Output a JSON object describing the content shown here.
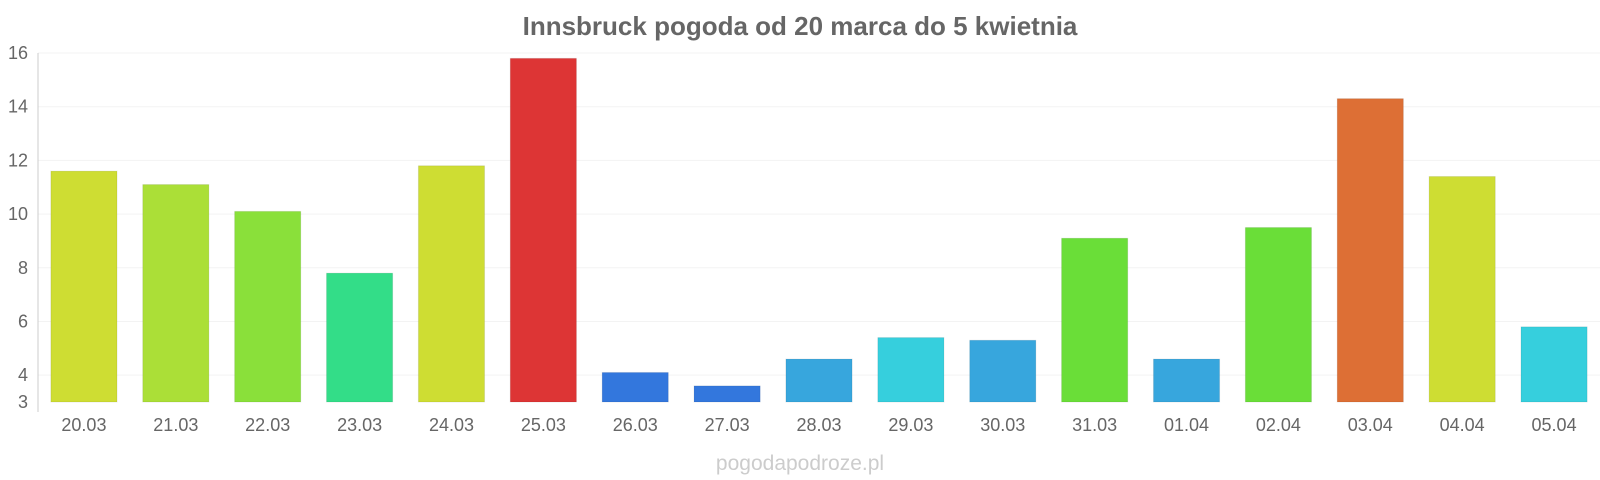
{
  "chart_data": {
    "type": "bar",
    "title": "Innsbruck pogoda od 20 marca do 5 kwietnia",
    "xlabel": "",
    "ylabel": "",
    "categories": [
      "20.03",
      "21.03",
      "22.03",
      "23.03",
      "24.03",
      "25.03",
      "26.03",
      "27.03",
      "28.03",
      "29.03",
      "30.03",
      "31.03",
      "01.04",
      "02.04",
      "03.04",
      "04.04",
      "05.04"
    ],
    "values": [
      11.6,
      11.1,
      10.1,
      7.8,
      11.8,
      15.8,
      4.1,
      3.6,
      4.6,
      5.4,
      5.3,
      9.1,
      4.6,
      9.5,
      14.3,
      11.4,
      5.8
    ],
    "colors": [
      "#cedd33",
      "#abdf37",
      "#8ae03a",
      "#33dd88",
      "#cedd33",
      "#dd3535",
      "#3377dd",
      "#3377dd",
      "#37a6dd",
      "#36cfdd",
      "#37a6dd",
      "#6ade38",
      "#37a6dd",
      "#6ade38",
      "#dd6f35",
      "#cedd33",
      "#36cfdd"
    ],
    "ylim": [
      3,
      16
    ],
    "yticks": [
      3,
      4,
      6,
      8,
      10,
      12,
      14,
      16
    ],
    "grid": true,
    "legend": "none"
  },
  "watermark": "pogodapodroze.pl"
}
